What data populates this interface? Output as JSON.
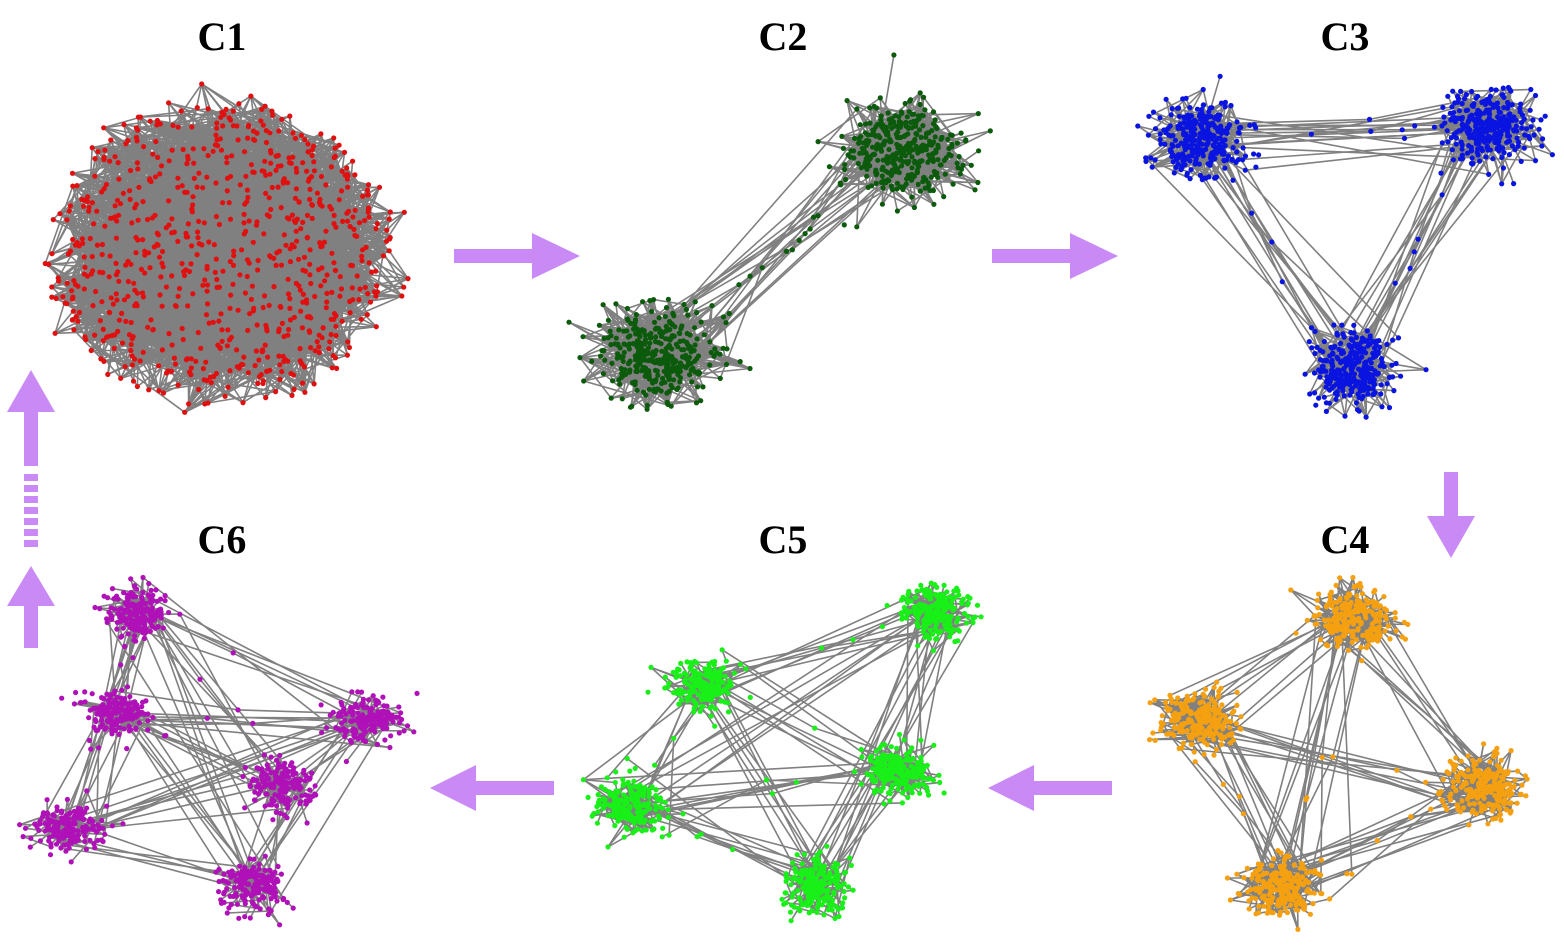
{
  "panels": [
    {
      "id": "c1",
      "title": "C1",
      "color": "#e01010",
      "clusters": 1
    },
    {
      "id": "c2",
      "title": "C2",
      "color": "#0c5a0c",
      "clusters": 2
    },
    {
      "id": "c3",
      "title": "C3",
      "color": "#0a14e0",
      "clusters": 3
    },
    {
      "id": "c4",
      "title": "C4",
      "color": "#f5a010",
      "clusters": 4
    },
    {
      "id": "c5",
      "title": "C5",
      "color": "#18f018",
      "clusters": 5
    },
    {
      "id": "c6",
      "title": "C6",
      "color": "#b010b8",
      "clusters": 6
    }
  ],
  "edge_color": "#808080",
  "arrow_color": "#c98af5",
  "sequence": [
    "C1",
    "C2",
    "C3",
    "C4",
    "C5",
    "C6"
  ]
}
